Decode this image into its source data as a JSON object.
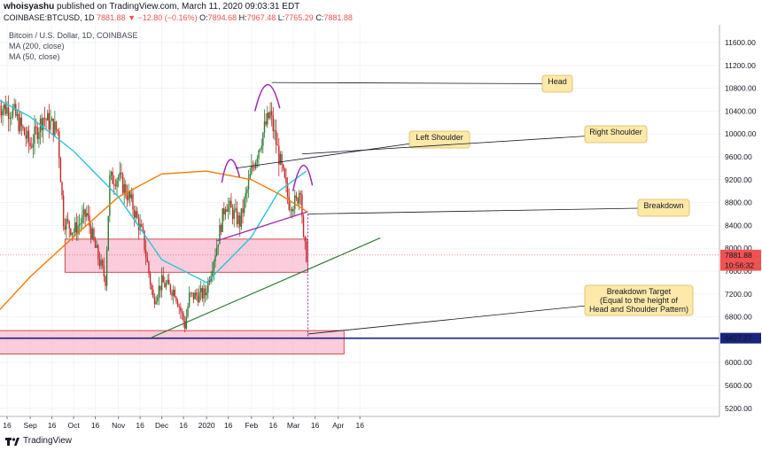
{
  "header": {
    "author": "whoisyashu",
    "published": "published on TradingView.com, March 11, 2020 09:03:31 EDT",
    "symbol": "COINBASE:BTCUSD, 1D",
    "last": "7881.88",
    "change": "▼ −12.80 (−0.16%)",
    "o_label": "O:",
    "o": "7894.68",
    "h_label": "H:",
    "h": "7967.48",
    "l_label": "L:",
    "l": "7765.29",
    "c_label": "C:",
    "c": "7881.88"
  },
  "legend": {
    "title": "Bitcoin / U.S. Dollar, 1D, COINBASE",
    "ma200": "MA (200, close)",
    "ma50": "MA (50, close)"
  },
  "footer": {
    "brand": "TradingView"
  },
  "colors": {
    "up": "#26a69a",
    "down": "#ef5350",
    "candle_up": "#2e7d32",
    "candle_down": "#c62828",
    "ma200": "#f57c00",
    "ma50": "#26c6da",
    "neckline": "#9c27b0",
    "trend": "#2e7d32",
    "support": "#1a237e",
    "box_fill": "#f8bbd0",
    "box_stroke": "#c62828",
    "callout": "#ffe9a8"
  },
  "chart_data": {
    "type": "candlestick",
    "title": "Bitcoin / U.S. Dollar, 1D, COINBASE",
    "ylim": [
      5000,
      12000
    ],
    "y_ticks": [
      "11600.00",
      "11200.00",
      "10800.00",
      "10400.00",
      "10000.00",
      "9600.00",
      "9200.00",
      "8800.00",
      "8400.00",
      "8000.00",
      "7600.00",
      "7200.00",
      "6800.00",
      "6400.00",
      "6000.00",
      "5600.00",
      "5200.00"
    ],
    "x_ticks": [
      {
        "label": "16",
        "date": "2019-08-16"
      },
      {
        "label": "Sep",
        "date": "2019-09-01"
      },
      {
        "label": "16",
        "date": "2019-09-16"
      },
      {
        "label": "Oct",
        "date": "2019-10-01"
      },
      {
        "label": "16",
        "date": "2019-10-16"
      },
      {
        "label": "Nov",
        "date": "2019-11-01"
      },
      {
        "label": "16",
        "date": "2019-11-16"
      },
      {
        "label": "Dec",
        "date": "2019-12-01"
      },
      {
        "label": "16",
        "date": "2019-12-16"
      },
      {
        "label": "2020",
        "date": "2020-01-01"
      },
      {
        "label": "16",
        "date": "2020-01-16"
      },
      {
        "label": "Feb",
        "date": "2020-02-01"
      },
      {
        "label": "16",
        "date": "2020-02-16"
      },
      {
        "label": "Mar",
        "date": "2020-03-01"
      },
      {
        "label": "16",
        "date": "2020-03-16"
      },
      {
        "label": "Apr",
        "date": "2020-04-01"
      },
      {
        "label": "16",
        "date": "2020-04-16"
      }
    ],
    "price_labels": [
      {
        "value": 7881.88,
        "text": "7881.88",
        "color": "#ef5350"
      },
      {
        "value": 7700,
        "text": "10:56:32",
        "color": "#ef5350"
      },
      {
        "value": 6427.27,
        "text": "6427.27",
        "color": "#1a237e"
      }
    ],
    "closes": [
      {
        "date": "2019-08-10",
        "close": 10500
      },
      {
        "date": "2019-08-20",
        "close": 10400
      },
      {
        "date": "2019-09-01",
        "close": 9800
      },
      {
        "date": "2019-09-10",
        "close": 10300
      },
      {
        "date": "2019-09-20",
        "close": 10050
      },
      {
        "date": "2019-09-24",
        "close": 8500
      },
      {
        "date": "2019-10-01",
        "close": 8300
      },
      {
        "date": "2019-10-10",
        "close": 8600
      },
      {
        "date": "2019-10-16",
        "close": 8000
      },
      {
        "date": "2019-10-23",
        "close": 7450
      },
      {
        "date": "2019-10-26",
        "close": 9200
      },
      {
        "date": "2019-11-01",
        "close": 9250
      },
      {
        "date": "2019-11-10",
        "close": 8800
      },
      {
        "date": "2019-11-18",
        "close": 8200
      },
      {
        "date": "2019-11-25",
        "close": 7100
      },
      {
        "date": "2019-12-01",
        "close": 7400
      },
      {
        "date": "2019-12-10",
        "close": 7250
      },
      {
        "date": "2019-12-17",
        "close": 6650
      },
      {
        "date": "2019-12-20",
        "close": 7150
      },
      {
        "date": "2019-12-31",
        "close": 7200
      },
      {
        "date": "2020-01-08",
        "close": 8050
      },
      {
        "date": "2020-01-14",
        "close": 8800
      },
      {
        "date": "2020-01-24",
        "close": 8450
      },
      {
        "date": "2020-02-01",
        "close": 9350
      },
      {
        "date": "2020-02-10",
        "close": 10100
      },
      {
        "date": "2020-02-14",
        "close": 10350
      },
      {
        "date": "2020-02-20",
        "close": 9600
      },
      {
        "date": "2020-02-27",
        "close": 8800
      },
      {
        "date": "2020-03-03",
        "close": 8800
      },
      {
        "date": "2020-03-06",
        "close": 9100
      },
      {
        "date": "2020-03-08",
        "close": 8100
      },
      {
        "date": "2020-03-10",
        "close": 7882
      }
    ],
    "ma200": [
      {
        "date": "2019-08-10",
        "value": 6900
      },
      {
        "date": "2019-09-01",
        "value": 7500
      },
      {
        "date": "2019-10-01",
        "value": 8200
      },
      {
        "date": "2019-11-01",
        "value": 8900
      },
      {
        "date": "2019-12-01",
        "value": 9300
      },
      {
        "date": "2020-01-01",
        "value": 9350
      },
      {
        "date": "2020-02-01",
        "value": 9200
      },
      {
        "date": "2020-02-20",
        "value": 8950
      },
      {
        "date": "2020-03-10",
        "value": 8650
      }
    ],
    "ma50": [
      {
        "date": "2019-08-10",
        "value": 10600
      },
      {
        "date": "2019-09-01",
        "value": 10300
      },
      {
        "date": "2019-10-01",
        "value": 9700
      },
      {
        "date": "2019-11-01",
        "value": 8900
      },
      {
        "date": "2019-12-01",
        "value": 7800
      },
      {
        "date": "2020-01-01",
        "value": 7400
      },
      {
        "date": "2020-02-01",
        "value": 8200
      },
      {
        "date": "2020-02-20",
        "value": 9000
      },
      {
        "date": "2020-03-10",
        "value": 9350
      }
    ],
    "annotations": {
      "left_shoulder": "Left Shoulder",
      "head": "Head",
      "right_shoulder": "Right Shoulder",
      "breakdown": "Breakdown",
      "target_line1": "Breakdown Target",
      "target_line2": "(Equal to the height of",
      "target_line3": "Head and Shoulder Pattern)"
    },
    "zones": [
      {
        "from": "2019-09-25",
        "to": "2020-03-11",
        "low": 7580,
        "high": 8160
      },
      {
        "from": "2019-08-10",
        "to": "2020-04-05",
        "low": 6150,
        "high": 6560
      }
    ],
    "support_level": 6427.27
  }
}
